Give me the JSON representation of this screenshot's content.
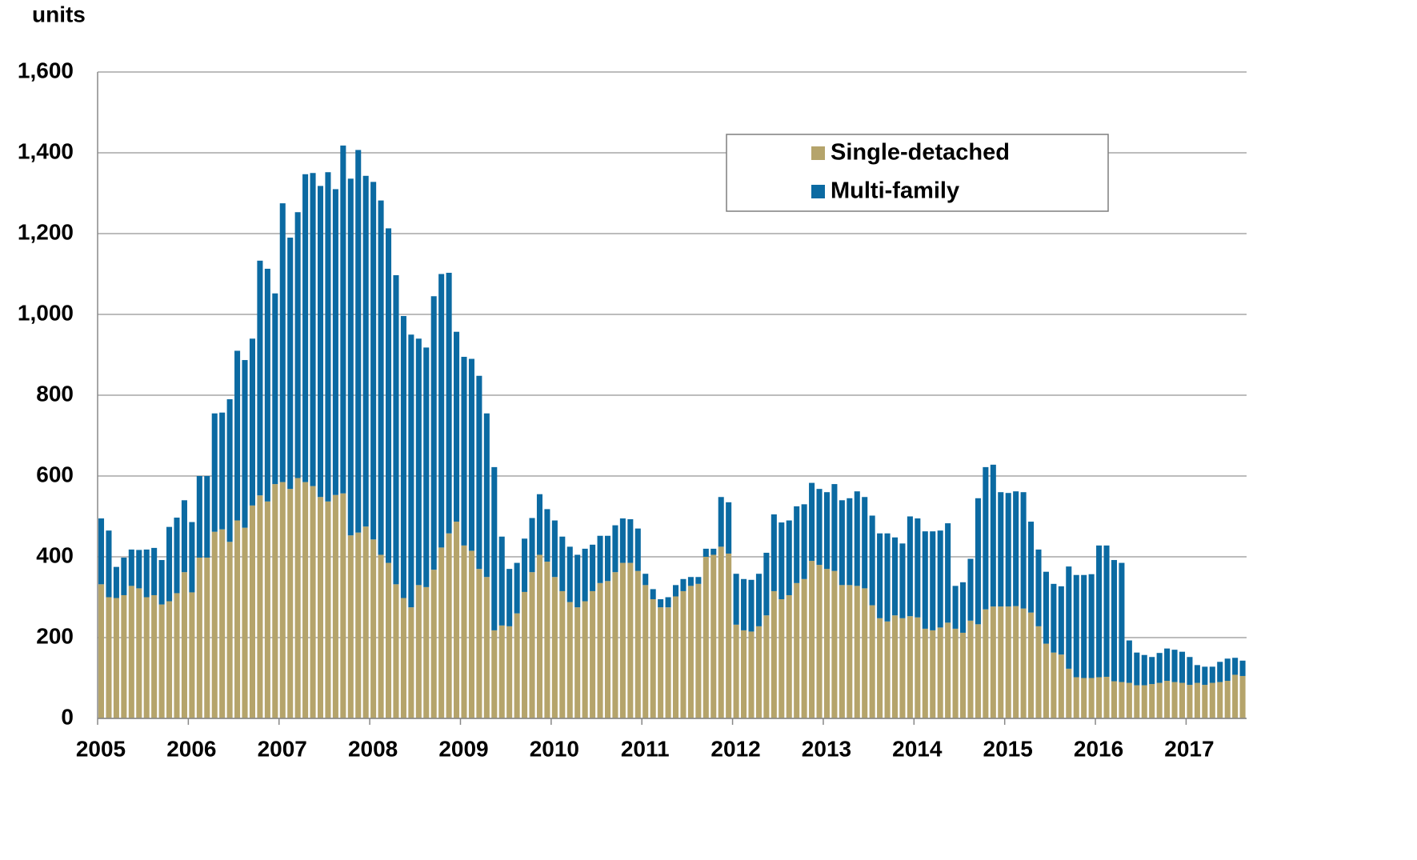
{
  "chart_data": {
    "type": "stacked_bar",
    "y_label": "units",
    "categories": [
      "2005",
      null,
      null,
      null,
      null,
      null,
      null,
      null,
      null,
      null,
      null,
      null,
      "2006",
      null,
      null,
      null,
      null,
      null,
      null,
      null,
      null,
      null,
      null,
      null,
      "2007",
      null,
      null,
      null,
      null,
      null,
      null,
      null,
      null,
      null,
      null,
      null,
      "2008",
      null,
      null,
      null,
      null,
      null,
      null,
      null,
      null,
      null,
      null,
      null,
      "2009",
      null,
      null,
      null,
      null,
      null,
      null,
      null,
      null,
      null,
      null,
      null,
      "2010",
      null,
      null,
      null,
      null,
      null,
      null,
      null,
      null,
      null,
      null,
      null,
      "2011",
      null,
      null,
      null,
      null,
      null,
      null,
      null,
      null,
      null,
      null,
      null,
      "2012",
      null,
      null,
      null,
      null,
      null,
      null,
      null,
      null,
      null,
      null,
      null,
      "2013",
      null,
      null,
      null,
      null,
      null,
      null,
      null,
      null,
      null,
      null,
      null,
      "2014",
      null,
      null,
      null,
      null,
      null,
      null,
      null,
      null,
      null,
      null,
      null,
      "2015",
      null,
      null,
      null,
      null,
      null,
      null,
      null,
      null,
      null,
      null,
      null,
      "2016",
      null,
      null,
      null,
      null,
      null,
      null,
      null,
      null,
      null,
      null,
      null,
      "2017",
      null,
      null,
      null,
      null,
      null,
      null,
      null
    ],
    "series": [
      {
        "name": "Single-detached",
        "color": "#b5a46b",
        "values": [
          332,
          300,
          298,
          305,
          328,
          322,
          300,
          305,
          282,
          290,
          310,
          362,
          312,
          398,
          398,
          462,
          468,
          437,
          490,
          472,
          527,
          552,
          537,
          580,
          585,
          568,
          595,
          585,
          575,
          548,
          537,
          553,
          557,
          453,
          460,
          475,
          443,
          405,
          385,
          332,
          298,
          275,
          330,
          325,
          368,
          423,
          458,
          487,
          428,
          415,
          370,
          350,
          218,
          230,
          228,
          260,
          313,
          362,
          405,
          388,
          350,
          315,
          288,
          275,
          290,
          315,
          335,
          340,
          362,
          385,
          385,
          365,
          330,
          295,
          275,
          275,
          302,
          315,
          328,
          333,
          400,
          405,
          425,
          408,
          232,
          218,
          215,
          228,
          255,
          315,
          295,
          305,
          335,
          345,
          390,
          380,
          370,
          365,
          330,
          330,
          328,
          322,
          280,
          248,
          240,
          255,
          248,
          253,
          250,
          222,
          218,
          225,
          237,
          222,
          212,
          242,
          233,
          270,
          277,
          277,
          277,
          278,
          272,
          262,
          228,
          185,
          163,
          158,
          123,
          102,
          100,
          100,
          102,
          103,
          92,
          90,
          88,
          82,
          82,
          85,
          88,
          93,
          90,
          88,
          83,
          88,
          83,
          88,
          90,
          93,
          108,
          105
        ]
      },
      {
        "name": "Multi-family",
        "color": "#0b6aa2",
        "values": [
          163,
          165,
          77,
          93,
          90,
          95,
          118,
          117,
          110,
          184,
          187,
          178,
          174,
          202,
          202,
          293,
          289,
          353,
          420,
          415,
          413,
          581,
          576,
          472,
          690,
          622,
          658,
          762,
          775,
          770,
          815,
          757,
          861,
          883,
          947,
          868,
          885,
          877,
          828,
          765,
          698,
          675,
          610,
          593,
          677,
          677,
          645,
          470,
          467,
          475,
          478,
          405,
          404,
          220,
          142,
          125,
          132,
          134,
          150,
          130,
          140,
          135,
          137,
          130,
          130,
          115,
          117,
          112,
          116,
          110,
          108,
          105,
          28,
          25,
          20,
          25,
          28,
          30,
          22,
          17,
          20,
          15,
          123,
          127,
          126,
          127,
          128,
          130,
          155,
          190,
          190,
          185,
          190,
          185,
          193,
          188,
          190,
          215,
          210,
          215,
          234,
          226,
          222,
          210,
          218,
          193,
          185,
          247,
          245,
          241,
          245,
          240,
          246,
          106,
          125,
          153,
          312,
          352,
          351,
          283,
          281,
          284,
          288,
          225,
          190,
          178,
          170,
          169,
          253,
          253,
          255,
          257,
          326,
          325,
          300,
          295,
          105,
          81,
          75,
          67,
          74,
          80,
          80,
          77,
          69,
          44,
          45,
          40,
          50,
          55,
          42,
          38
        ]
      }
    ],
    "ylim": [
      0,
      1600
    ],
    "yticks": [
      0,
      200,
      400,
      600,
      800,
      {
        "value": 1000,
        "label": "1,000"
      },
      {
        "value": 1200,
        "label": "1,200"
      },
      {
        "value": 1400,
        "label": "1,400"
      },
      {
        "value": 1600,
        "label": "1,600"
      }
    ],
    "grid": true,
    "legend": "upper right"
  }
}
